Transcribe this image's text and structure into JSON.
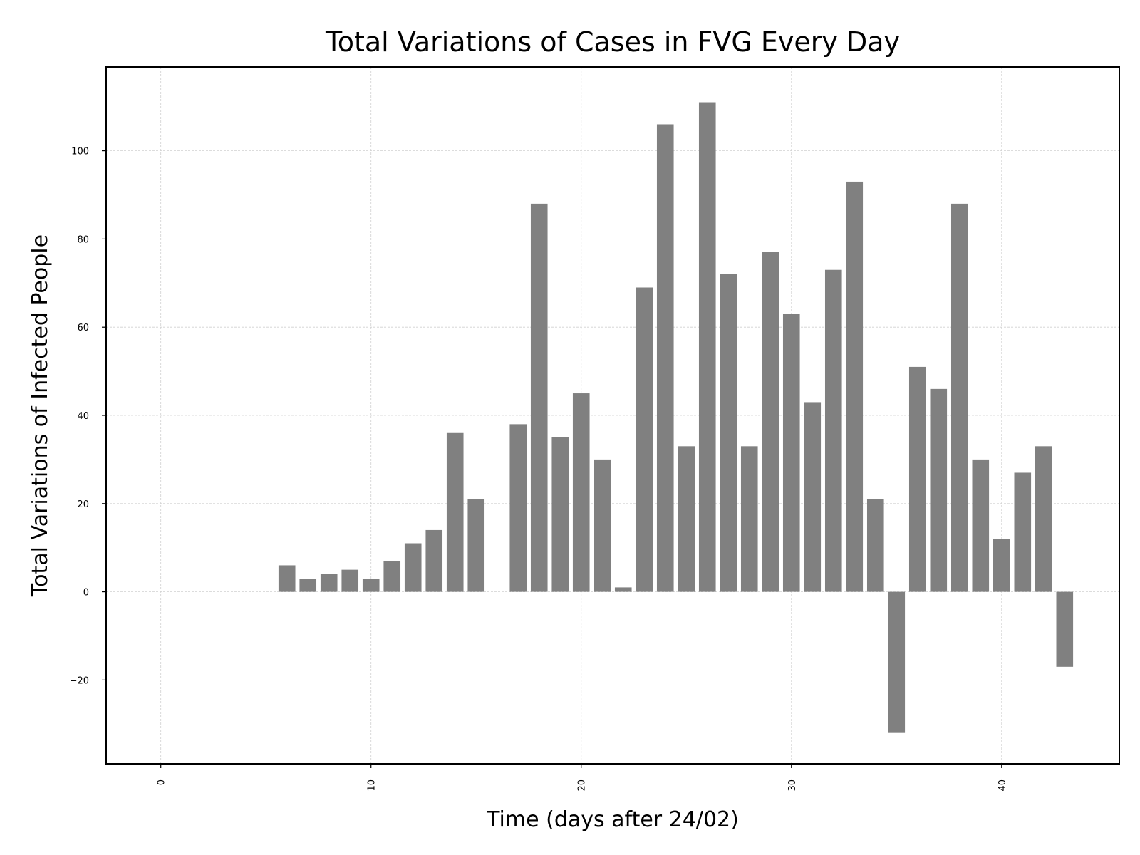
{
  "chart_data": {
    "type": "bar",
    "title": "Total Variations of Cases in FVG Every Day",
    "xlabel": "Time (days after 24/02)",
    "ylabel": "Total Variations of Infected People",
    "x": [
      0,
      1,
      2,
      3,
      4,
      5,
      6,
      7,
      8,
      9,
      10,
      11,
      12,
      13,
      14,
      15,
      16,
      17,
      18,
      19,
      20,
      21,
      22,
      23,
      24,
      25,
      26,
      27,
      28,
      29,
      30,
      31,
      32,
      33,
      34,
      35,
      36,
      37,
      38,
      39,
      40,
      41,
      42,
      43
    ],
    "values": [
      0,
      0,
      0,
      0,
      0,
      0,
      6,
      3,
      4,
      5,
      3,
      7,
      11,
      14,
      36,
      21,
      0,
      38,
      88,
      35,
      45,
      30,
      1,
      69,
      106,
      33,
      111,
      72,
      33,
      77,
      63,
      43,
      73,
      93,
      21,
      -32,
      51,
      46,
      88,
      30,
      12,
      27,
      33,
      -17
    ],
    "xlim": [
      -2.6,
      45.6
    ],
    "ylim": [
      -39,
      119
    ],
    "xticks": [
      0,
      10,
      20,
      30,
      40
    ],
    "xtick_labels": [
      "0",
      "10",
      "20",
      "30",
      "40"
    ],
    "yticks": [
      -20,
      0,
      20,
      40,
      60,
      80,
      100
    ],
    "ytick_labels": [
      "−20",
      "0",
      "20",
      "40",
      "60",
      "80",
      "100"
    ],
    "bar_color": "#808080",
    "grid": true,
    "legend": "none"
  }
}
